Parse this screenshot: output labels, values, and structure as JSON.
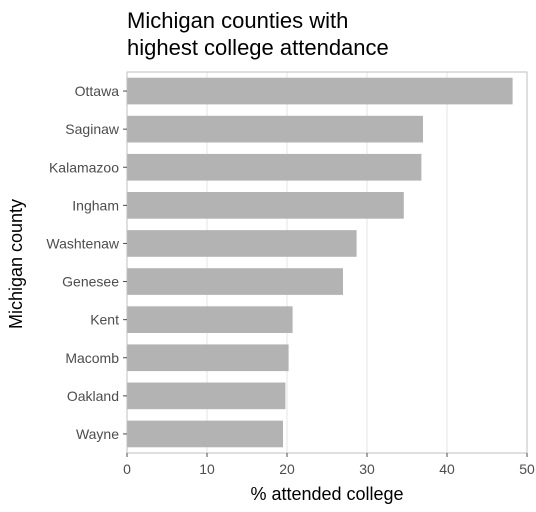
{
  "chart_data": {
    "type": "bar",
    "orientation": "horizontal",
    "title_lines": [
      "Michigan counties with",
      "highest college attendance"
    ],
    "xlabel": "% attended college",
    "ylabel": "Michigan county",
    "categories": [
      "Ottawa",
      "Saginaw",
      "Kalamazoo",
      "Ingham",
      "Washtenaw",
      "Genesee",
      "Kent",
      "Macomb",
      "Oakland",
      "Wayne"
    ],
    "values": [
      48.2,
      37.0,
      36.8,
      34.6,
      28.7,
      27.0,
      20.7,
      20.2,
      19.8,
      19.5
    ],
    "xlim": [
      0,
      50
    ],
    "xticks": [
      0,
      10,
      20,
      30,
      40,
      50
    ],
    "grid": true,
    "bar_color": "#b3b3b3"
  }
}
